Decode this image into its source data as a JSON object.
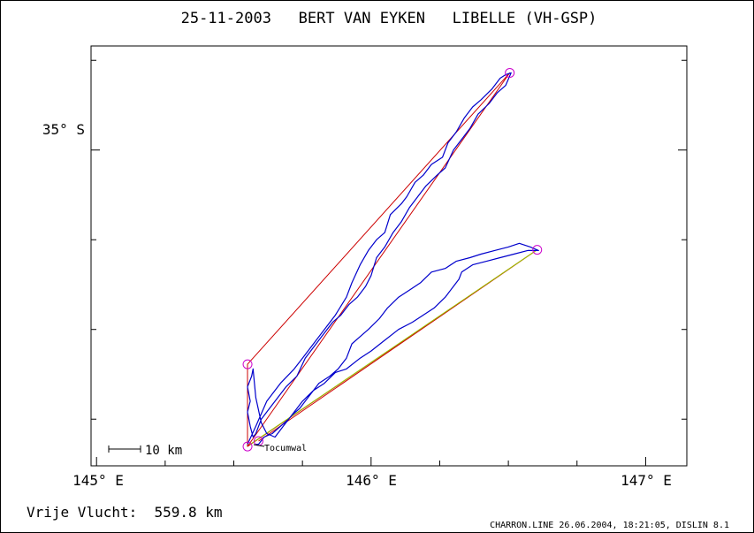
{
  "chart_data": {
    "type": "line",
    "title": "25-11-2003   BERT VAN EYKEN   LIBELLE (VH-GSP)",
    "xlim": [
      144.98,
      147.15
    ],
    "ylim": [
      -35.88,
      -34.71
    ],
    "x_ticks": [
      {
        "value": 145,
        "label": "145° E"
      },
      {
        "value": 146,
        "label": "146° E"
      },
      {
        "value": 147,
        "label": "147° E"
      }
    ],
    "y_ticks": [
      {
        "value": -35.0,
        "label": "35° S"
      }
    ],
    "scale_bar": "10 km",
    "place_label": "Tocumwal",
    "footer_left": "Vrije Vlucht:  559.8 km",
    "footer_right": "CHARRON.LINE 26.06.2004, 18:21:05, DISLIN 8.1",
    "turnpoints": [
      {
        "x": 145.55,
        "y": -35.826
      },
      {
        "x": 146.505,
        "y": -34.785
      },
      {
        "x": 145.55,
        "y": -35.597
      },
      {
        "x": 146.605,
        "y": -35.278
      },
      {
        "x": 145.59,
        "y": -35.811
      }
    ],
    "series": [
      {
        "color": "#cc0000",
        "x": [
          145.55,
          146.505,
          145.55,
          145.55,
          146.605,
          145.59
        ],
        "y": [
          -35.826,
          -34.785,
          -35.597,
          -35.826,
          -35.278,
          -35.811
        ]
      },
      {
        "color": "#99cc00",
        "x": [
          145.56,
          146.605
        ],
        "y": [
          -35.82,
          -35.278
        ]
      },
      {
        "color": "#0000cc",
        "x": [
          145.55,
          145.58,
          145.62,
          145.67,
          145.72,
          145.75,
          145.79,
          145.83,
          145.87,
          145.91,
          145.93,
          145.96,
          145.99,
          146.02,
          146.05,
          146.07,
          146.11,
          146.13,
          146.16,
          146.19,
          146.22,
          146.26,
          146.28,
          146.31,
          146.34,
          146.37,
          146.4,
          146.44,
          146.47,
          146.49,
          146.51,
          146.49,
          146.46,
          146.43,
          146.39,
          146.36,
          146.33,
          146.3,
          146.27,
          146.24,
          146.2,
          146.17,
          146.14,
          146.11,
          146.08,
          146.05,
          146.02,
          146.0,
          145.98,
          145.95,
          145.92,
          145.89,
          145.86,
          145.82,
          145.79,
          145.76,
          145.73,
          145.69,
          145.66,
          145.63,
          145.6,
          145.58,
          145.57,
          145.56,
          145.55,
          145.56,
          145.55,
          145.565,
          145.57,
          145.58,
          145.6,
          145.62,
          145.65,
          145.68,
          145.71,
          145.74,
          145.78,
          145.81,
          145.85,
          145.88,
          145.91,
          145.93,
          145.96,
          145.99,
          146.03,
          146.06,
          146.1,
          146.14,
          146.18,
          146.22,
          146.27,
          146.31,
          146.36,
          146.4,
          146.45,
          146.5,
          146.54,
          146.58,
          146.61,
          146.57,
          146.52,
          146.47,
          146.42,
          146.37,
          146.33,
          146.32,
          146.3,
          146.27,
          146.23,
          146.19,
          146.15,
          146.1,
          146.05,
          146.0,
          145.96,
          145.91,
          145.87,
          145.83,
          145.79,
          145.75,
          145.72,
          145.7,
          145.67,
          145.64,
          145.61,
          145.6,
          145.59,
          145.58
        ],
        "y": [
          -35.82,
          -35.77,
          -35.7,
          -35.65,
          -35.61,
          -35.58,
          -35.54,
          -35.5,
          -35.46,
          -35.41,
          -35.37,
          -35.32,
          -35.28,
          -35.25,
          -35.23,
          -35.18,
          -35.15,
          -35.13,
          -35.09,
          -35.07,
          -35.04,
          -35.02,
          -34.98,
          -34.95,
          -34.91,
          -34.88,
          -34.86,
          -34.83,
          -34.8,
          -34.79,
          -34.785,
          -34.82,
          -34.84,
          -34.87,
          -34.9,
          -34.94,
          -34.97,
          -35.0,
          -35.05,
          -35.07,
          -35.1,
          -35.13,
          -35.16,
          -35.2,
          -35.23,
          -35.27,
          -35.3,
          -35.35,
          -35.38,
          -35.41,
          -35.43,
          -35.46,
          -35.48,
          -35.52,
          -35.55,
          -35.58,
          -35.63,
          -35.66,
          -35.69,
          -35.72,
          -35.75,
          -35.79,
          -35.8,
          -35.77,
          -35.73,
          -35.7,
          -35.66,
          -35.63,
          -35.61,
          -35.69,
          -35.76,
          -35.79,
          -35.8,
          -35.77,
          -35.74,
          -35.72,
          -35.68,
          -35.65,
          -35.63,
          -35.61,
          -35.58,
          -35.54,
          -35.52,
          -35.5,
          -35.47,
          -35.44,
          -35.41,
          -35.39,
          -35.37,
          -35.34,
          -35.33,
          -35.31,
          -35.3,
          -35.29,
          -35.28,
          -35.27,
          -35.26,
          -35.27,
          -35.28,
          -35.28,
          -35.29,
          -35.3,
          -35.31,
          -35.32,
          -35.34,
          -35.36,
          -35.38,
          -35.41,
          -35.44,
          -35.46,
          -35.48,
          -35.5,
          -35.53,
          -35.56,
          -35.58,
          -35.61,
          -35.62,
          -35.65,
          -35.67,
          -35.7,
          -35.73,
          -35.75,
          -35.77,
          -35.79,
          -35.8,
          -35.81,
          -35.82,
          -35.82
        ]
      }
    ]
  }
}
